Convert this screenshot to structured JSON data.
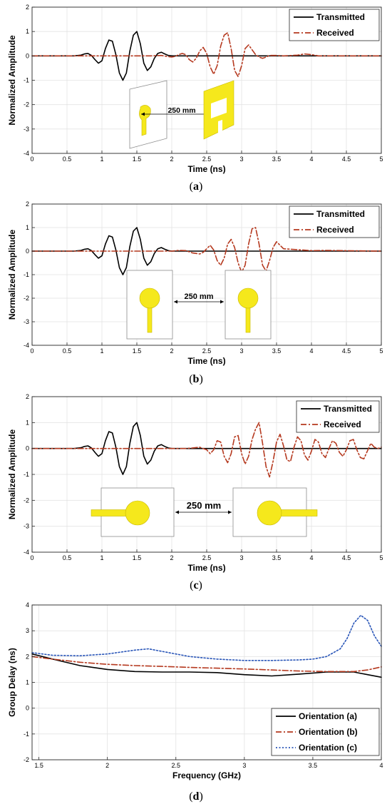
{
  "captions": [
    "a",
    "b",
    "c",
    "d"
  ],
  "colors": {
    "transmitted": "#000000",
    "received": "#b5391f",
    "orientation_c": "#2a56b8",
    "grid": "#e3e3e3",
    "antenna_fill": "#f5e81c",
    "antenna_stroke": "#c8b800",
    "inset_border": "#8c8c8c"
  },
  "insets": {
    "a": {
      "distance_label": "250 mm"
    },
    "b": {
      "distance_label": "250 mm"
    },
    "c": {
      "distance_label": "250 mm"
    }
  },
  "chart_data": [
    {
      "panel": "a",
      "type": "line",
      "title": "",
      "xlabel": "Time (ns)",
      "ylabel": "Normalized Amplitude",
      "xlim": [
        0,
        5
      ],
      "ylim": [
        -4,
        2
      ],
      "xticks": [
        "0",
        "0.5",
        "1",
        "1.5",
        "2",
        "2.5",
        "3",
        "3.5",
        "4",
        "4.5",
        "5"
      ],
      "yticks": [
        "-4",
        "-3",
        "-2",
        "-1",
        "0",
        "1",
        "2"
      ],
      "grid": true,
      "legend_position": "top-right",
      "series": [
        {
          "name": "Transmitted",
          "style": "solid",
          "x": [
            0,
            0.6,
            0.7,
            0.75,
            0.8,
            0.85,
            0.9,
            0.95,
            1.0,
            1.05,
            1.1,
            1.15,
            1.2,
            1.25,
            1.3,
            1.35,
            1.4,
            1.45,
            1.5,
            1.55,
            1.6,
            1.65,
            1.7,
            1.75,
            1.8,
            1.85,
            1.9,
            1.95,
            2.0,
            2.1,
            2.2,
            5
          ],
          "y": [
            0,
            0,
            0.03,
            0.08,
            0.1,
            0.02,
            -0.15,
            -0.3,
            -0.2,
            0.3,
            0.65,
            0.6,
            0.05,
            -0.7,
            -1.0,
            -0.7,
            0.2,
            0.85,
            1.0,
            0.5,
            -0.3,
            -0.6,
            -0.45,
            -0.1,
            0.1,
            0.15,
            0.08,
            0.02,
            0,
            0,
            0,
            0
          ]
        },
        {
          "name": "Received",
          "style": "dash-dot",
          "x": [
            0,
            1.7,
            1.85,
            1.95,
            2.0,
            2.05,
            2.1,
            2.15,
            2.2,
            2.25,
            2.3,
            2.35,
            2.4,
            2.45,
            2.5,
            2.55,
            2.6,
            2.65,
            2.7,
            2.75,
            2.8,
            2.85,
            2.9,
            2.95,
            3.0,
            3.05,
            3.1,
            3.15,
            3.2,
            3.25,
            3.3,
            3.35,
            3.4,
            3.5,
            3.6,
            3.8,
            3.9,
            4.0,
            4.1,
            5
          ],
          "y": [
            0,
            0,
            0.02,
            -0.03,
            -0.05,
            -0.02,
            0.05,
            0.1,
            0.05,
            -0.15,
            -0.25,
            -0.1,
            0.2,
            0.35,
            0.1,
            -0.45,
            -0.75,
            -0.4,
            0.4,
            0.85,
            0.95,
            0.3,
            -0.6,
            -0.85,
            -0.4,
            0.3,
            0.45,
            0.25,
            0.05,
            -0.05,
            -0.1,
            -0.05,
            0.02,
            0.02,
            0,
            0.03,
            0.08,
            0.05,
            0,
            0
          ]
        }
      ]
    },
    {
      "panel": "b",
      "type": "line",
      "title": "",
      "xlabel": "Time (ns)",
      "ylabel": "Normalized Amplitude",
      "xlim": [
        0,
        5
      ],
      "ylim": [
        -4,
        2
      ],
      "xticks": [
        "0",
        "0.5",
        "1",
        "1.5",
        "2",
        "2.5",
        "3",
        "3.5",
        "4",
        "4.5",
        "5"
      ],
      "yticks": [
        "-4",
        "-3",
        "-2",
        "-1",
        "0",
        "1",
        "2"
      ],
      "grid": true,
      "legend_position": "top-right",
      "series": [
        {
          "name": "Transmitted",
          "style": "solid",
          "x": [
            0,
            0.6,
            0.7,
            0.75,
            0.8,
            0.85,
            0.9,
            0.95,
            1.0,
            1.05,
            1.1,
            1.15,
            1.2,
            1.25,
            1.3,
            1.35,
            1.4,
            1.45,
            1.5,
            1.55,
            1.6,
            1.65,
            1.7,
            1.75,
            1.8,
            1.85,
            1.9,
            1.95,
            2.0,
            2.1,
            2.2,
            5
          ],
          "y": [
            0,
            0,
            0.03,
            0.08,
            0.1,
            0.02,
            -0.15,
            -0.3,
            -0.2,
            0.3,
            0.65,
            0.6,
            0.05,
            -0.7,
            -1.0,
            -0.7,
            0.2,
            0.85,
            1.0,
            0.5,
            -0.3,
            -0.6,
            -0.45,
            -0.1,
            0.1,
            0.15,
            0.08,
            0.02,
            0,
            0,
            0,
            0
          ]
        },
        {
          "name": "Received",
          "style": "dash-dot",
          "x": [
            0,
            2.0,
            2.1,
            2.2,
            2.3,
            2.4,
            2.45,
            2.5,
            2.55,
            2.6,
            2.65,
            2.7,
            2.75,
            2.8,
            2.85,
            2.9,
            2.95,
            3.0,
            3.05,
            3.1,
            3.15,
            3.2,
            3.25,
            3.3,
            3.35,
            3.4,
            3.45,
            3.5,
            3.6,
            4.0,
            4.2,
            5
          ],
          "y": [
            0,
            0,
            0.03,
            0.02,
            -0.08,
            -0.12,
            -0.05,
            0.1,
            0.25,
            0.05,
            -0.4,
            -0.6,
            -0.3,
            0.3,
            0.5,
            0.15,
            -0.5,
            -0.9,
            -0.6,
            0.3,
            0.95,
            1.0,
            0.3,
            -0.6,
            -0.85,
            -0.4,
            0.15,
            0.4,
            0.1,
            0.02,
            0.03,
            0
          ]
        }
      ]
    },
    {
      "panel": "c",
      "type": "line",
      "title": "",
      "xlabel": "Time (ns)",
      "ylabel": "Normalized Amplitude",
      "xlim": [
        0,
        5
      ],
      "ylim": [
        -4,
        2
      ],
      "xticks": [
        "0",
        "0.5",
        "1",
        "1.5",
        "2",
        "2.5",
        "3",
        "3.5",
        "4",
        "4.5",
        "5"
      ],
      "yticks": [
        "-4",
        "-3",
        "-2",
        "-1",
        "0",
        "1",
        "2"
      ],
      "grid": true,
      "legend_position": "top-right",
      "series": [
        {
          "name": "Transmitted",
          "style": "solid",
          "x": [
            0,
            0.6,
            0.7,
            0.75,
            0.8,
            0.85,
            0.9,
            0.95,
            1.0,
            1.05,
            1.1,
            1.15,
            1.2,
            1.25,
            1.3,
            1.35,
            1.4,
            1.45,
            1.5,
            1.55,
            1.6,
            1.65,
            1.7,
            1.75,
            1.8,
            1.85,
            1.9,
            1.95,
            2.0,
            2.1,
            2.2,
            5
          ],
          "y": [
            0,
            0,
            0.03,
            0.08,
            0.1,
            0.02,
            -0.15,
            -0.3,
            -0.2,
            0.3,
            0.65,
            0.6,
            0.05,
            -0.7,
            -1.0,
            -0.7,
            0.2,
            0.85,
            1.0,
            0.5,
            -0.3,
            -0.6,
            -0.45,
            -0.1,
            0.1,
            0.15,
            0.08,
            0.02,
            0,
            0,
            0,
            0
          ]
        },
        {
          "name": "Received",
          "style": "dash-dot",
          "x": [
            0,
            2.2,
            2.3,
            2.4,
            2.5,
            2.55,
            2.6,
            2.65,
            2.7,
            2.75,
            2.8,
            2.85,
            2.9,
            2.95,
            3.0,
            3.05,
            3.1,
            3.15,
            3.2,
            3.25,
            3.3,
            3.35,
            3.4,
            3.45,
            3.5,
            3.55,
            3.6,
            3.65,
            3.7,
            3.75,
            3.8,
            3.85,
            3.9,
            3.95,
            4.0,
            4.05,
            4.1,
            4.15,
            4.2,
            4.25,
            4.3,
            4.35,
            4.4,
            4.45,
            4.5,
            4.55,
            4.6,
            4.65,
            4.7,
            4.75,
            4.8,
            4.85,
            4.9,
            4.95,
            5.0
          ],
          "y": [
            0,
            0,
            0.02,
            0.05,
            -0.05,
            -0.2,
            -0.05,
            0.3,
            0.25,
            -0.3,
            -0.55,
            -0.2,
            0.45,
            0.5,
            -0.2,
            -0.6,
            -0.3,
            0.35,
            0.75,
            1.0,
            0.2,
            -0.7,
            -1.1,
            -0.5,
            0.25,
            0.55,
            0.1,
            -0.45,
            -0.5,
            0.05,
            0.45,
            0.3,
            -0.25,
            -0.45,
            -0.1,
            0.35,
            0.25,
            -0.2,
            -0.35,
            0,
            0.3,
            0.2,
            -0.15,
            -0.3,
            -0.05,
            0.3,
            0.35,
            -0.05,
            -0.35,
            -0.4,
            -0.1,
            0.2,
            0.05,
            0.0,
            0.05
          ]
        }
      ]
    },
    {
      "panel": "d",
      "type": "line",
      "title": "",
      "xlabel": "Frequency (GHz)",
      "ylabel": "Group Delay (ns)",
      "xlim": [
        1.45,
        4
      ],
      "ylim": [
        -2,
        4
      ],
      "xticks": [
        "1.5",
        "2",
        "2.5",
        "3",
        "3.5",
        "4"
      ],
      "yticks": [
        "-2",
        "-1",
        "0",
        "1",
        "2",
        "3",
        "4"
      ],
      "grid": true,
      "legend_position": "bottom-right",
      "series": [
        {
          "name": "Orientation (a)",
          "style": "solid",
          "x": [
            1.45,
            1.6,
            1.8,
            2.0,
            2.2,
            2.4,
            2.6,
            2.8,
            3.0,
            3.2,
            3.4,
            3.6,
            3.8,
            3.9,
            4.0
          ],
          "y": [
            2.1,
            1.9,
            1.65,
            1.5,
            1.42,
            1.4,
            1.4,
            1.38,
            1.3,
            1.25,
            1.32,
            1.4,
            1.4,
            1.3,
            1.2
          ]
        },
        {
          "name": "Orientation (b)",
          "style": "dash-dot",
          "x": [
            1.45,
            1.6,
            1.8,
            2.0,
            2.2,
            2.4,
            2.6,
            2.8,
            3.0,
            3.2,
            3.4,
            3.6,
            3.8,
            3.9,
            4.0
          ],
          "y": [
            2.0,
            1.9,
            1.78,
            1.7,
            1.65,
            1.62,
            1.58,
            1.55,
            1.52,
            1.48,
            1.44,
            1.42,
            1.42,
            1.48,
            1.6
          ]
        },
        {
          "name": "Orientation (c)",
          "style": "dotted",
          "x": [
            1.45,
            1.6,
            1.8,
            2.0,
            2.2,
            2.3,
            2.4,
            2.6,
            2.8,
            3.0,
            3.2,
            3.4,
            3.5,
            3.6,
            3.7,
            3.75,
            3.8,
            3.85,
            3.9,
            3.95,
            4.0
          ],
          "y": [
            2.15,
            2.05,
            2.03,
            2.1,
            2.25,
            2.3,
            2.2,
            2.0,
            1.9,
            1.85,
            1.85,
            1.87,
            1.9,
            2.0,
            2.3,
            2.7,
            3.3,
            3.6,
            3.4,
            2.8,
            2.4
          ]
        }
      ]
    }
  ]
}
